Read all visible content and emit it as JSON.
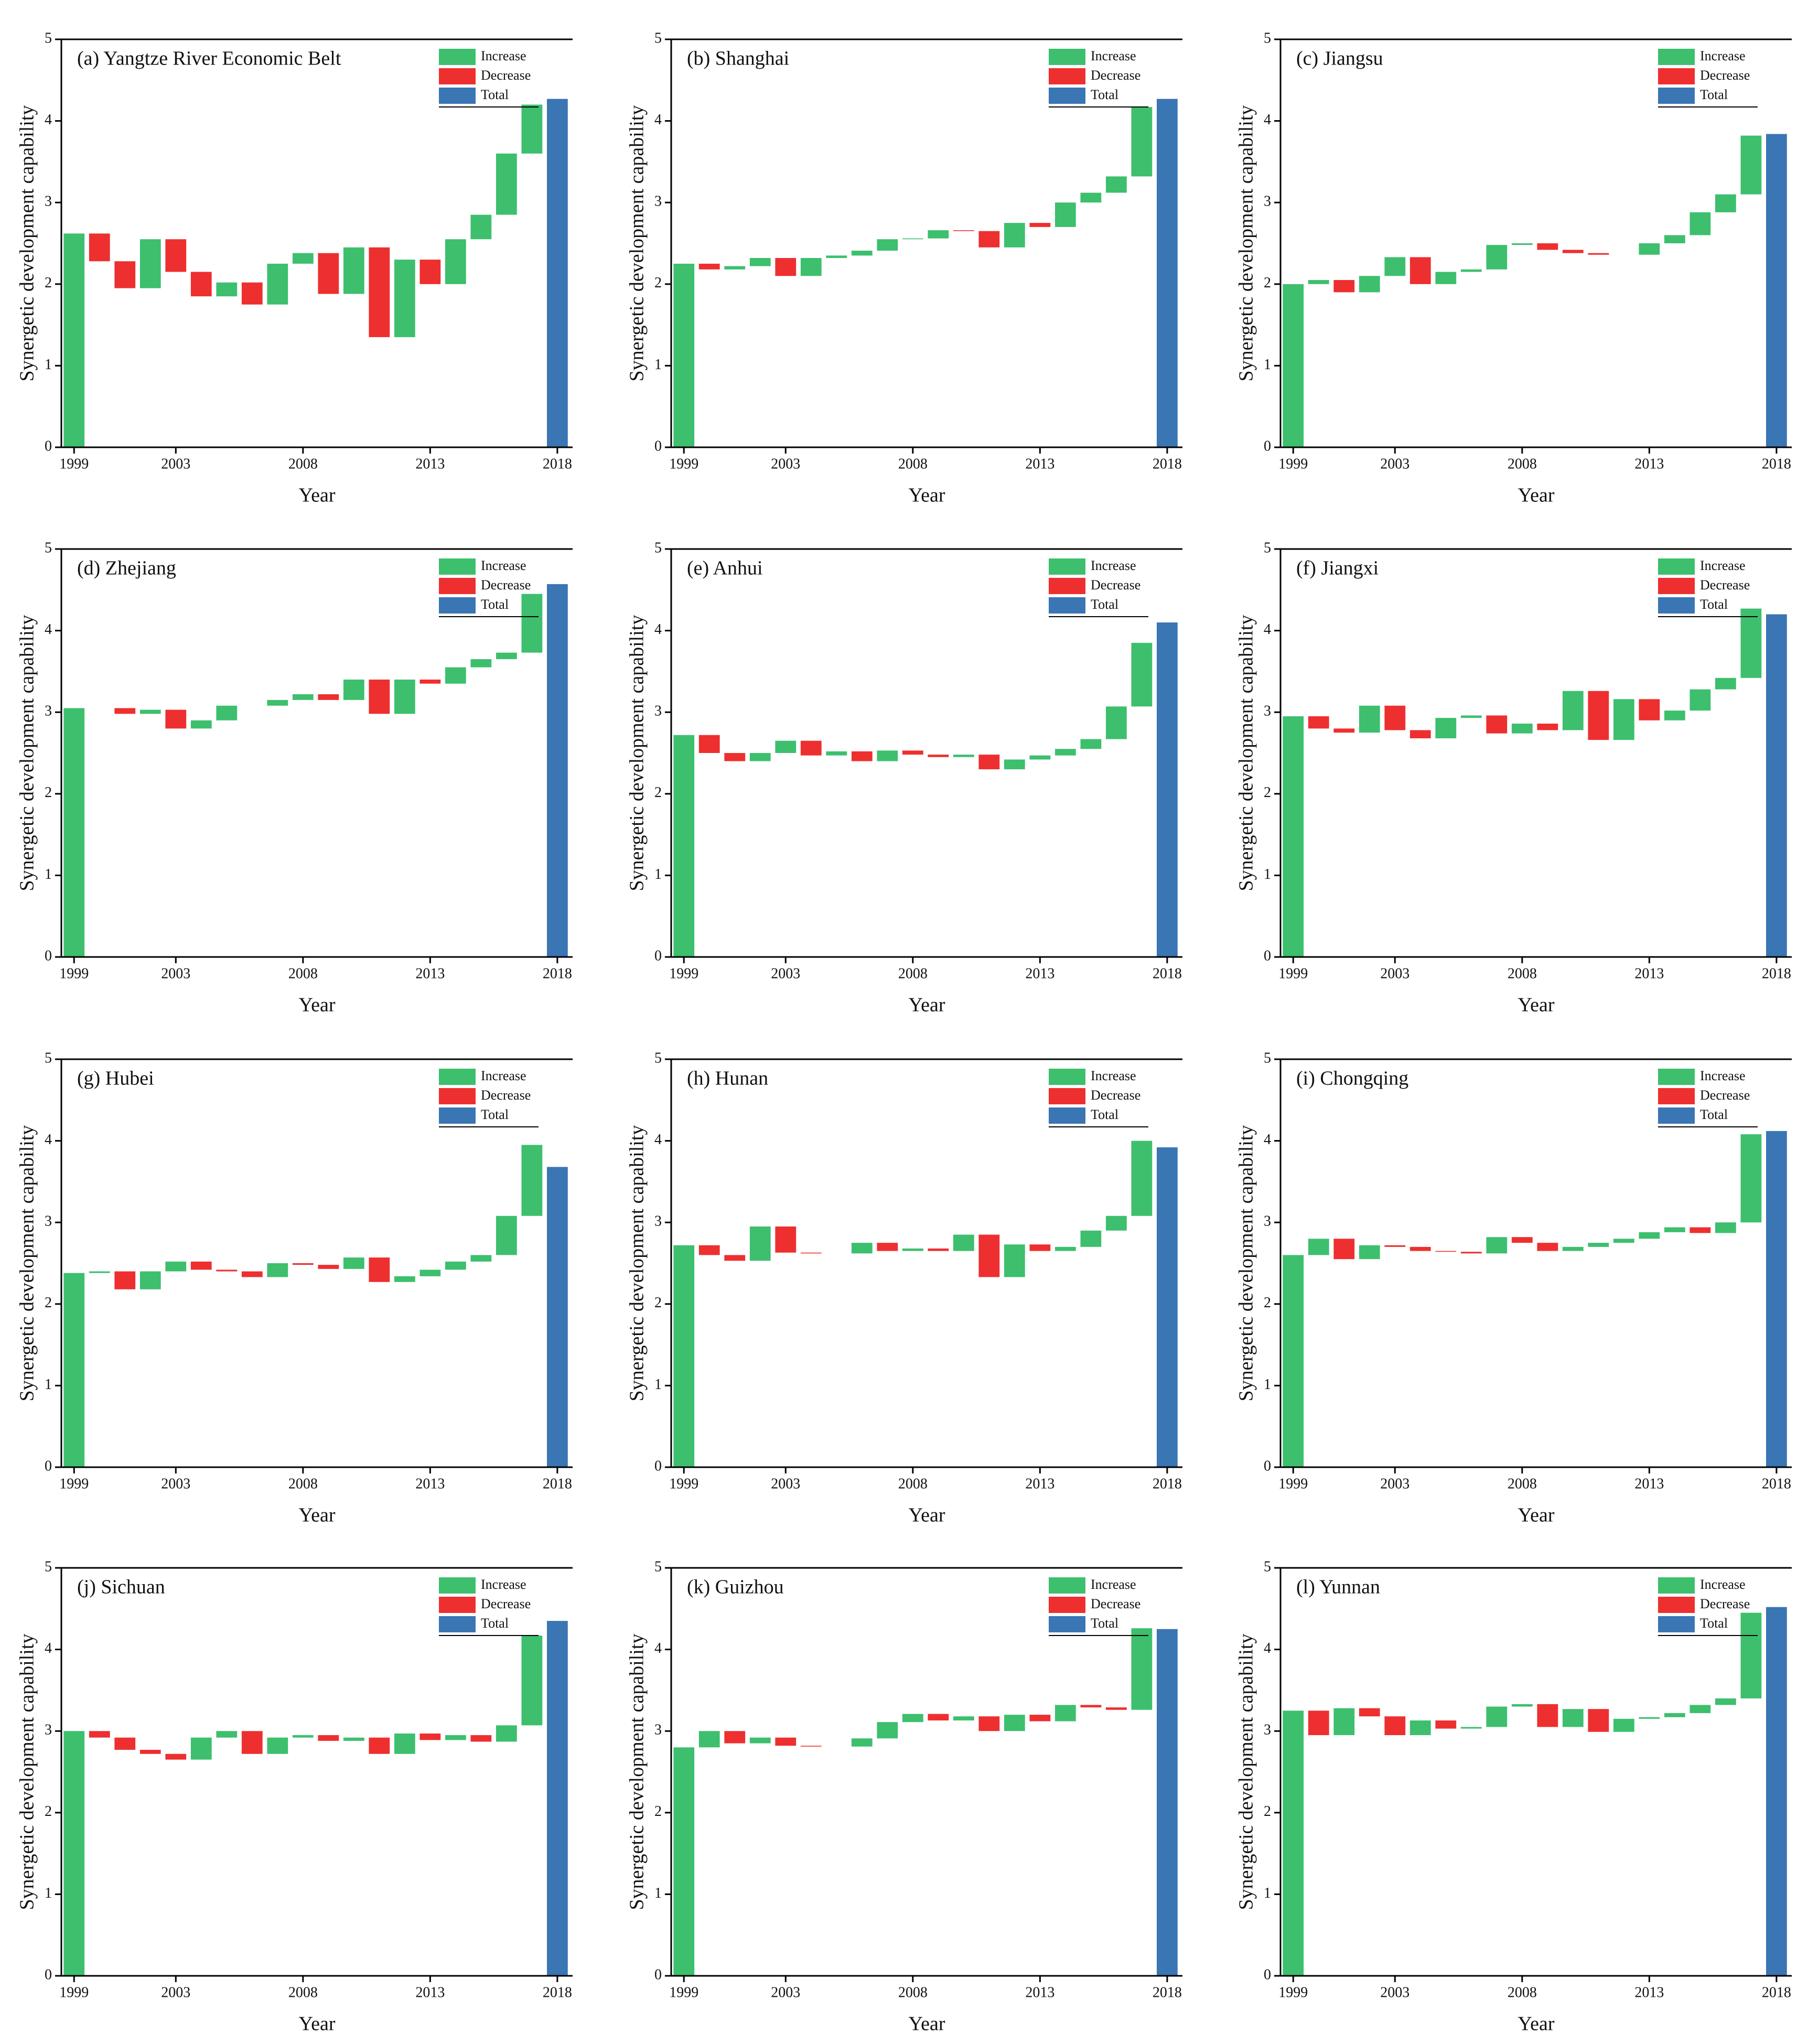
{
  "chart_data": [
    {
      "type": "waterfall",
      "title": "(a) Yangtze River Economic Belt",
      "x_label": "Year",
      "y_label": "Synergetic development capability",
      "x": [
        1999,
        2000,
        2001,
        2002,
        2003,
        2004,
        2005,
        2006,
        2007,
        2008,
        2009,
        2010,
        2011,
        2012,
        2013,
        2014,
        2015,
        2016,
        2017,
        2018
      ],
      "values": [
        2.62,
        -0.34,
        -0.33,
        0.6,
        -0.4,
        -0.3,
        0.17,
        -0.27,
        0.5,
        0.13,
        -0.5,
        0.57,
        -1.1,
        0.95,
        -0.3,
        0.55,
        0.3,
        0.75,
        0.6,
        4.27
      ],
      "xlim": [
        1998.5,
        2018.6
      ],
      "ylim": [
        0,
        5
      ],
      "xticks": [
        1999,
        2003,
        2008,
        2013,
        2018
      ],
      "yticks": [
        0,
        1,
        2,
        3,
        4,
        5
      ],
      "legend": [
        {
          "name": "Increase",
          "color": "#3dbf6e"
        },
        {
          "name": "Decrease",
          "color": "#ee2f2f"
        },
        {
          "name": "Total",
          "color": "#3a75b4"
        }
      ],
      "legend_position": "upper right"
    },
    {
      "type": "waterfall",
      "title": "(b) Shanghai",
      "x_label": "Year",
      "y_label": "Synergetic development capability",
      "x": [
        1999,
        2000,
        2001,
        2002,
        2003,
        2004,
        2005,
        2006,
        2007,
        2008,
        2009,
        2010,
        2011,
        2012,
        2013,
        2014,
        2015,
        2016,
        2017,
        2018
      ],
      "values": [
        2.25,
        -0.07,
        0.04,
        0.1,
        -0.22,
        0.22,
        0.03,
        0.06,
        0.14,
        0.01,
        0.1,
        -0.01,
        -0.2,
        0.3,
        -0.05,
        0.3,
        0.12,
        0.2,
        0.85,
        4.27
      ],
      "xlim": [
        1998.5,
        2018.6
      ],
      "ylim": [
        0,
        5
      ],
      "xticks": [
        1999,
        2003,
        2008,
        2013,
        2018
      ],
      "yticks": [
        0,
        1,
        2,
        3,
        4,
        5
      ],
      "legend": [
        {
          "name": "Increase",
          "color": "#3dbf6e"
        },
        {
          "name": "Decrease",
          "color": "#ee2f2f"
        },
        {
          "name": "Total",
          "color": "#3a75b4"
        }
      ],
      "legend_position": "upper right"
    },
    {
      "type": "waterfall",
      "title": "(c) Jiangsu",
      "x_label": "Year",
      "y_label": "Synergetic development capability",
      "x": [
        1999,
        2000,
        2001,
        2002,
        2003,
        2004,
        2005,
        2006,
        2007,
        2008,
        2009,
        2010,
        2011,
        2012,
        2013,
        2014,
        2015,
        2016,
        2017,
        2018
      ],
      "values": [
        2.0,
        0.05,
        -0.15,
        0.2,
        0.23,
        -0.33,
        0.15,
        0.03,
        0.3,
        0.02,
        -0.08,
        -0.04,
        -0.02,
        0,
        0.14,
        0.1,
        0.28,
        0.22,
        0.72,
        3.84
      ],
      "xlim": [
        1998.5,
        2018.6
      ],
      "ylim": [
        0,
        5
      ],
      "xticks": [
        1999,
        2003,
        2008,
        2013,
        2018
      ],
      "yticks": [
        0,
        1,
        2,
        3,
        4,
        5
      ],
      "legend": [
        {
          "name": "Increase",
          "color": "#3dbf6e"
        },
        {
          "name": "Decrease",
          "color": "#ee2f2f"
        },
        {
          "name": "Total",
          "color": "#3a75b4"
        }
      ],
      "legend_position": "upper right"
    },
    {
      "type": "waterfall",
      "title": "(d) Zhejiang",
      "x_label": "Year",
      "y_label": "Synergetic development capability",
      "x": [
        1999,
        2000,
        2001,
        2002,
        2003,
        2004,
        2005,
        2006,
        2007,
        2008,
        2009,
        2010,
        2011,
        2012,
        2013,
        2014,
        2015,
        2016,
        2017,
        2018
      ],
      "values": [
        3.05,
        0,
        -0.07,
        0.05,
        -0.23,
        0.1,
        0.18,
        0,
        0.07,
        0.07,
        -0.07,
        0.25,
        -0.42,
        0.42,
        -0.05,
        0.2,
        0.1,
        0.08,
        0.72,
        4.57
      ],
      "xlim": [
        1998.5,
        2018.6
      ],
      "ylim": [
        0,
        5
      ],
      "xticks": [
        1999,
        2003,
        2008,
        2013,
        2018
      ],
      "yticks": [
        0,
        1,
        2,
        3,
        4,
        5
      ],
      "legend": [
        {
          "name": "Increase",
          "color": "#3dbf6e"
        },
        {
          "name": "Decrease",
          "color": "#ee2f2f"
        },
        {
          "name": "Total",
          "color": "#3a75b4"
        }
      ],
      "legend_position": "upper right"
    },
    {
      "type": "waterfall",
      "title": "(e) Anhui",
      "x_label": "Year",
      "y_label": "Synergetic development capability",
      "x": [
        1999,
        2000,
        2001,
        2002,
        2003,
        2004,
        2005,
        2006,
        2007,
        2008,
        2009,
        2010,
        2011,
        2012,
        2013,
        2014,
        2015,
        2016,
        2017,
        2018
      ],
      "values": [
        2.72,
        -0.22,
        -0.1,
        0.1,
        0.15,
        -0.18,
        0.05,
        -0.12,
        0.13,
        -0.05,
        -0.03,
        0.03,
        -0.18,
        0.12,
        0.05,
        0.08,
        0.12,
        0.4,
        0.78,
        4.1
      ],
      "xlim": [
        1998.5,
        2018.6
      ],
      "ylim": [
        0,
        5
      ],
      "xticks": [
        1999,
        2003,
        2008,
        2013,
        2018
      ],
      "yticks": [
        0,
        1,
        2,
        3,
        4,
        5
      ],
      "legend": [
        {
          "name": "Increase",
          "color": "#3dbf6e"
        },
        {
          "name": "Decrease",
          "color": "#ee2f2f"
        },
        {
          "name": "Total",
          "color": "#3a75b4"
        }
      ],
      "legend_position": "upper right"
    },
    {
      "type": "waterfall",
      "title": "(f) Jiangxi",
      "x_label": "Year",
      "y_label": "Synergetic development capability",
      "x": [
        1999,
        2000,
        2001,
        2002,
        2003,
        2004,
        2005,
        2006,
        2007,
        2008,
        2009,
        2010,
        2011,
        2012,
        2013,
        2014,
        2015,
        2016,
        2017,
        2018
      ],
      "values": [
        2.95,
        -0.15,
        -0.05,
        0.33,
        -0.3,
        -0.1,
        0.25,
        0.03,
        -0.22,
        0.12,
        -0.08,
        0.48,
        -0.6,
        0.5,
        -0.26,
        0.12,
        0.26,
        0.14,
        0.85,
        4.2
      ],
      "xlim": [
        1998.5,
        2018.6
      ],
      "ylim": [
        0,
        5
      ],
      "xticks": [
        1999,
        2003,
        2008,
        2013,
        2018
      ],
      "yticks": [
        0,
        1,
        2,
        3,
        4,
        5
      ],
      "legend": [
        {
          "name": "Increase",
          "color": "#3dbf6e"
        },
        {
          "name": "Decrease",
          "color": "#ee2f2f"
        },
        {
          "name": "Total",
          "color": "#3a75b4"
        }
      ],
      "legend_position": "upper right"
    },
    {
      "type": "waterfall",
      "title": "(g) Hubei",
      "x_label": "Year",
      "y_label": "Synergetic development capability",
      "x": [
        1999,
        2000,
        2001,
        2002,
        2003,
        2004,
        2005,
        2006,
        2007,
        2008,
        2009,
        2010,
        2011,
        2012,
        2013,
        2014,
        2015,
        2016,
        2017,
        2018
      ],
      "values": [
        2.38,
        0.02,
        -0.22,
        0.22,
        0.12,
        -0.1,
        -0.02,
        -0.07,
        0.17,
        -0.02,
        -0.05,
        0.14,
        -0.3,
        0.07,
        0.08,
        0.1,
        0.08,
        0.48,
        0.87,
        3.68
      ],
      "xlim": [
        1998.5,
        2018.6
      ],
      "ylim": [
        0,
        5
      ],
      "xticks": [
        1999,
        2003,
        2008,
        2013,
        2018
      ],
      "yticks": [
        0,
        1,
        2,
        3,
        4,
        5
      ],
      "legend": [
        {
          "name": "Increase",
          "color": "#3dbf6e"
        },
        {
          "name": "Decrease",
          "color": "#ee2f2f"
        },
        {
          "name": "Total",
          "color": "#3a75b4"
        }
      ],
      "legend_position": "upper right"
    },
    {
      "type": "waterfall",
      "title": "(h) Hunan",
      "x_label": "Year",
      "y_label": "Synergetic development capability",
      "x": [
        1999,
        2000,
        2001,
        2002,
        2003,
        2004,
        2005,
        2006,
        2007,
        2008,
        2009,
        2010,
        2011,
        2012,
        2013,
        2014,
        2015,
        2016,
        2017,
        2018
      ],
      "values": [
        2.72,
        -0.12,
        -0.07,
        0.42,
        -0.32,
        -0.01,
        0,
        0.13,
        -0.1,
        0.03,
        -0.03,
        0.2,
        -0.52,
        0.4,
        -0.08,
        0.05,
        0.2,
        0.18,
        0.92,
        3.92
      ],
      "xlim": [
        1998.5,
        2018.6
      ],
      "ylim": [
        0,
        5
      ],
      "xticks": [
        1999,
        2003,
        2008,
        2013,
        2018
      ],
      "yticks": [
        0,
        1,
        2,
        3,
        4,
        5
      ],
      "legend": [
        {
          "name": "Increase",
          "color": "#3dbf6e"
        },
        {
          "name": "Decrease",
          "color": "#ee2f2f"
        },
        {
          "name": "Total",
          "color": "#3a75b4"
        }
      ],
      "legend_position": "upper right"
    },
    {
      "type": "waterfall",
      "title": "(i) Chongqing",
      "x_label": "Year",
      "y_label": "Synergetic development capability",
      "x": [
        1999,
        2000,
        2001,
        2002,
        2003,
        2004,
        2005,
        2006,
        2007,
        2008,
        2009,
        2010,
        2011,
        2012,
        2013,
        2014,
        2015,
        2016,
        2017,
        2018
      ],
      "values": [
        2.6,
        0.2,
        -0.25,
        0.17,
        -0.02,
        -0.05,
        -0.01,
        -0.02,
        0.2,
        -0.07,
        -0.1,
        0.05,
        0.05,
        0.05,
        0.08,
        0.06,
        -0.07,
        0.13,
        1.08,
        4.12
      ],
      "xlim": [
        1998.5,
        2018.6
      ],
      "ylim": [
        0,
        5
      ],
      "xticks": [
        1999,
        2003,
        2008,
        2013,
        2018
      ],
      "yticks": [
        0,
        1,
        2,
        3,
        4,
        5
      ],
      "legend": [
        {
          "name": "Increase",
          "color": "#3dbf6e"
        },
        {
          "name": "Decrease",
          "color": "#ee2f2f"
        },
        {
          "name": "Total",
          "color": "#3a75b4"
        }
      ],
      "legend_position": "upper right"
    },
    {
      "type": "waterfall",
      "title": "(j) Sichuan",
      "x_label": "Year",
      "y_label": "Synergetic development capability",
      "x": [
        1999,
        2000,
        2001,
        2002,
        2003,
        2004,
        2005,
        2006,
        2007,
        2008,
        2009,
        2010,
        2011,
        2012,
        2013,
        2014,
        2015,
        2016,
        2017,
        2018
      ],
      "values": [
        3.0,
        -0.08,
        -0.15,
        -0.05,
        -0.07,
        0.27,
        0.08,
        -0.28,
        0.2,
        0.03,
        -0.07,
        0.04,
        -0.2,
        0.25,
        -0.08,
        0.06,
        -0.08,
        0.2,
        1.1,
        4.35
      ],
      "xlim": [
        1998.5,
        2018.6
      ],
      "ylim": [
        0,
        5
      ],
      "xticks": [
        1999,
        2003,
        2008,
        2013,
        2018
      ],
      "yticks": [
        0,
        1,
        2,
        3,
        4,
        5
      ],
      "legend": [
        {
          "name": "Increase",
          "color": "#3dbf6e"
        },
        {
          "name": "Decrease",
          "color": "#ee2f2f"
        },
        {
          "name": "Total",
          "color": "#3a75b4"
        }
      ],
      "legend_position": "upper right"
    },
    {
      "type": "waterfall",
      "title": "(k) Guizhou",
      "x_label": "Year",
      "y_label": "Synergetic development capability",
      "x": [
        1999,
        2000,
        2001,
        2002,
        2003,
        2004,
        2005,
        2006,
        2007,
        2008,
        2009,
        2010,
        2011,
        2012,
        2013,
        2014,
        2015,
        2016,
        2017,
        2018
      ],
      "values": [
        2.8,
        0.2,
        -0.15,
        0.07,
        -0.1,
        -0.01,
        0,
        0.1,
        0.2,
        0.1,
        -0.08,
        0.05,
        -0.18,
        0.2,
        -0.08,
        0.2,
        -0.03,
        -0.03,
        1.0,
        4.25
      ],
      "xlim": [
        1998.5,
        2018.6
      ],
      "ylim": [
        0,
        5
      ],
      "xticks": [
        1999,
        2003,
        2008,
        2013,
        2018
      ],
      "yticks": [
        0,
        1,
        2,
        3,
        4,
        5
      ],
      "legend": [
        {
          "name": "Increase",
          "color": "#3dbf6e"
        },
        {
          "name": "Decrease",
          "color": "#ee2f2f"
        },
        {
          "name": "Total",
          "color": "#3a75b4"
        }
      ],
      "legend_position": "upper right"
    },
    {
      "type": "waterfall",
      "title": "(l) Yunnan",
      "x_label": "Year",
      "y_label": "Synergetic development capability",
      "x": [
        1999,
        2000,
        2001,
        2002,
        2003,
        2004,
        2005,
        2006,
        2007,
        2008,
        2009,
        2010,
        2011,
        2012,
        2013,
        2014,
        2015,
        2016,
        2017,
        2018
      ],
      "values": [
        3.25,
        -0.3,
        0.33,
        -0.1,
        -0.23,
        0.18,
        -0.1,
        0.02,
        0.25,
        0.03,
        -0.28,
        0.22,
        -0.28,
        0.16,
        0.02,
        0.05,
        0.1,
        0.08,
        1.05,
        4.52
      ],
      "xlim": [
        1998.5,
        2018.6
      ],
      "ylim": [
        0,
        5
      ],
      "xticks": [
        1999,
        2003,
        2008,
        2013,
        2018
      ],
      "yticks": [
        0,
        1,
        2,
        3,
        4,
        5
      ],
      "legend": [
        {
          "name": "Increase",
          "color": "#3dbf6e"
        },
        {
          "name": "Decrease",
          "color": "#ee2f2f"
        },
        {
          "name": "Total",
          "color": "#3a75b4"
        }
      ],
      "legend_position": "upper right"
    }
  ]
}
